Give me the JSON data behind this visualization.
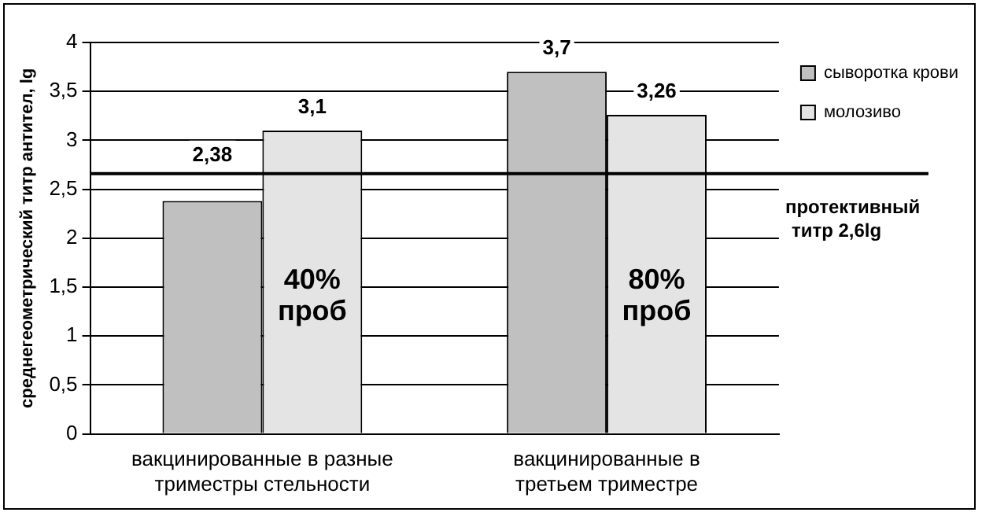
{
  "chart_data": {
    "type": "bar",
    "ylabel": "среднегеометрический титр антител, lg",
    "categories": [
      "вакцинированные в разные триместры стельности",
      "вакцинированные в третьем триместре"
    ],
    "series": [
      {
        "name": "сыворотка крови",
        "color": "#c0c0c0",
        "values": [
          2.38,
          3.7
        ],
        "value_labels": [
          "2,38",
          "3,7"
        ]
      },
      {
        "name": "молозиво",
        "color": "#e4e4e4",
        "values": [
          3.1,
          3.26
        ],
        "value_labels": [
          "3,1",
          "3,26"
        ]
      }
    ],
    "ylim": [
      0,
      4
    ],
    "yticks": [
      0,
      {
        "value": 0.5,
        "label": "0,5"
      },
      1,
      {
        "value": 1.5,
        "label": "1,5"
      },
      2,
      {
        "value": 2.5,
        "label": "2,5"
      },
      3,
      {
        "value": 3.5,
        "label": "3,5"
      },
      4
    ],
    "grid": "y",
    "legend": "top right",
    "ref_lines": [
      {
        "axis": "y",
        "value": 2.66,
        "label": "протективный титр 2,6lg",
        "color": "#000000"
      }
    ],
    "annotations": [
      {
        "text": "40% проб",
        "x": "вакцинированные в разные триместры стельности",
        "y": 1.4
      },
      {
        "text": "80% проб",
        "x": "вакцинированные в третьем триместре",
        "y": 1.4
      }
    ]
  }
}
